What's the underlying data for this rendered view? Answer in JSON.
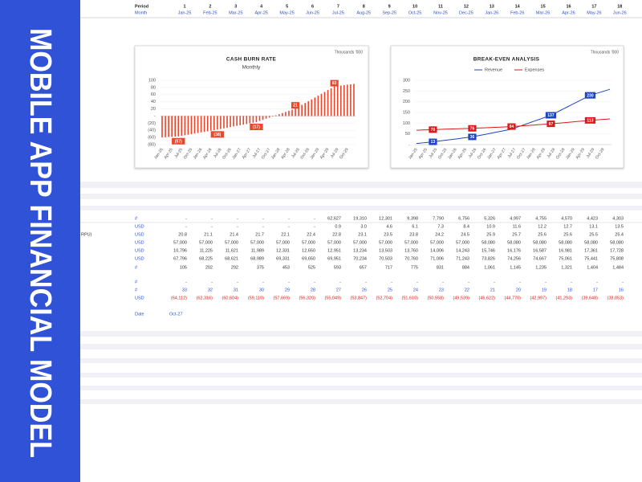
{
  "sidebar": {
    "title": "MOBILE APP FINANCIAL MODEL"
  },
  "header": {
    "period_label": "Period",
    "month_label": "Month",
    "periods": [
      1,
      2,
      3,
      4,
      5,
      6,
      7,
      8,
      9,
      10,
      11,
      12,
      13,
      14,
      15,
      16,
      17,
      18
    ],
    "months": [
      "Jan-25",
      "Feb-25",
      "Mar-25",
      "Apr-25",
      "May-25",
      "Jun-25",
      "Jul-25",
      "Aug-25",
      "Sep-25",
      "Oct-25",
      "Nov-25",
      "Dec-25",
      "Jan-26",
      "Feb-26",
      "Mar-26",
      "Apr-26",
      "May-26",
      "Jun-26"
    ]
  },
  "chart_data": [
    {
      "type": "bar",
      "title": "CASH BURN RATE",
      "subtitle": "Monthly",
      "note": "Thousands '000",
      "color": "#e8452c",
      "label_color": "#e8482c",
      "grid": true,
      "categories": [
        "Jan-25",
        null,
        null,
        "Apr-25",
        null,
        null,
        "Jul-25",
        null,
        null,
        "Oct-25",
        null,
        null,
        "Jan-26",
        null,
        null,
        "Apr-26",
        null,
        null,
        "Jul-26",
        null,
        null,
        "Oct-26",
        null,
        null,
        "Jan-27",
        null,
        null,
        "Apr-27",
        null,
        null,
        "Jul-27",
        null,
        null,
        "Oct-27",
        null,
        null,
        "Jan-28",
        null,
        null,
        "Apr-28",
        null,
        null,
        "Jul-28",
        null,
        null,
        "Oct-28",
        null,
        null,
        "Jan-29",
        null,
        null,
        "Apr-29",
        null,
        null,
        "Jul-29",
        null,
        null,
        "Oct-29",
        null,
        null
      ],
      "values": [
        -60,
        -59.4,
        -58.8,
        -58.2,
        -57.6,
        -57,
        -55.4,
        -53.8,
        -52.3,
        -50.7,
        -49.1,
        -47.5,
        -45.9,
        -44.3,
        -42.8,
        -41.2,
        -39.6,
        -38,
        -36.3,
        -34.5,
        -32.8,
        -31,
        -29.3,
        -27.5,
        -25.8,
        -24,
        -22.3,
        -20.5,
        -18.8,
        -17,
        -13.8,
        -10.7,
        -7.5,
        -4.3,
        -1.2,
        2,
        5.2,
        8.3,
        11.5,
        14.7,
        17.8,
        21,
        26.2,
        31.3,
        36.5,
        41.7,
        46.8,
        52,
        57.2,
        62.3,
        67.5,
        72.7,
        77.8,
        83,
        84.2,
        85.3,
        86.5,
        87.7,
        88.8,
        90
      ],
      "value_labels": [
        null,
        null,
        null,
        null,
        null,
        "(57)",
        null,
        null,
        null,
        null,
        null,
        null,
        null,
        null,
        null,
        null,
        null,
        "(38)",
        null,
        null,
        null,
        null,
        null,
        null,
        null,
        null,
        null,
        null,
        null,
        "(17)",
        null,
        null,
        null,
        null,
        null,
        null,
        null,
        null,
        null,
        null,
        null,
        "21",
        null,
        null,
        null,
        null,
        null,
        null,
        null,
        null,
        null,
        null,
        null,
        "83",
        null,
        null,
        null,
        null,
        null,
        null
      ],
      "ylim": [
        -80,
        100
      ],
      "yticks": [
        100,
        80,
        60,
        40,
        20,
        {
          "value": 0,
          "label": "-"
        },
        {
          "value": -20,
          "label": "(20)"
        },
        {
          "value": -40,
          "label": "(40)"
        },
        {
          "value": -60,
          "label": "(60)"
        },
        {
          "value": -80,
          "label": "(80)"
        }
      ]
    },
    {
      "type": "line",
      "title": "BREAK-EVEN ANALYSIS",
      "note": "Thousands '000",
      "grid": true,
      "legend": "top",
      "categories": [
        "Jan-25",
        null,
        null,
        "Apr-25",
        null,
        null,
        "Jul-25",
        null,
        null,
        "Oct-25",
        null,
        null,
        "Jan-26",
        null,
        null,
        "Apr-26",
        null,
        null,
        "Jul-26",
        null,
        null,
        "Oct-26",
        null,
        null,
        "Jan-27",
        null,
        null,
        "Apr-27",
        null,
        null,
        "Jul-27",
        null,
        null,
        "Oct-27",
        null,
        null,
        "Jan-28",
        null,
        null,
        "Apr-28",
        null,
        null,
        "Jul-28",
        null,
        null,
        "Oct-28",
        null,
        null,
        "Jan-29",
        null,
        null,
        "Apr-29",
        null,
        null,
        "Jul-29",
        null,
        null,
        "Oct-29",
        null,
        null
      ],
      "series": [
        {
          "name": "Revenue",
          "color": "#1f45c2",
          "values": [
            5,
            6.6,
            8.2,
            9.8,
            11.4,
            13,
            14.9,
            16.8,
            18.8,
            20.7,
            22.6,
            24.5,
            26.4,
            28.3,
            30.3,
            32.2,
            34.1,
            36,
            39,
            42,
            45,
            48,
            51,
            54,
            57,
            60,
            63,
            66,
            69,
            72,
            77.4,
            82.8,
            88.3,
            93.7,
            99.1,
            104.5,
            109.9,
            115.3,
            120.8,
            126.2,
            131.6,
            137,
            144.8,
            152.5,
            160.3,
            168,
            175.8,
            183.5,
            191.3,
            199,
            206.8,
            214.5,
            222.3,
            230,
            234.7,
            239.3,
            244,
            248.7,
            253.3,
            258
          ],
          "value_labels": [
            null,
            null,
            null,
            null,
            null,
            "13",
            null,
            null,
            null,
            null,
            null,
            null,
            null,
            null,
            null,
            null,
            null,
            "36",
            null,
            null,
            null,
            null,
            null,
            null,
            null,
            null,
            null,
            null,
            null,
            null,
            null,
            null,
            null,
            null,
            null,
            null,
            null,
            null,
            null,
            null,
            null,
            "137",
            null,
            null,
            null,
            null,
            null,
            null,
            null,
            null,
            null,
            null,
            null,
            "230",
            null,
            null,
            null,
            null,
            null,
            null
          ]
        },
        {
          "name": "Expenses",
          "color": "#d91a1a",
          "values": [
            67,
            67.6,
            68.2,
            68.8,
            69.4,
            70,
            70.5,
            71,
            71.5,
            72,
            72.5,
            73,
            73.5,
            74,
            74.5,
            75,
            75.5,
            76,
            76.7,
            77.3,
            78,
            78.7,
            79.3,
            80,
            80.7,
            81.3,
            82,
            82.7,
            83.3,
            84,
            85.1,
            86.2,
            87.3,
            88.3,
            89.4,
            90.5,
            91.6,
            92.7,
            93.8,
            94.8,
            95.9,
            97,
            98.3,
            99.7,
            101,
            102.3,
            103.7,
            105,
            106.3,
            107.7,
            109,
            110.3,
            111.7,
            113,
            114.2,
            115.3,
            116.5,
            117.7,
            118.8,
            120
          ],
          "value_labels": [
            null,
            null,
            null,
            null,
            null,
            "70",
            null,
            null,
            null,
            null,
            null,
            null,
            null,
            null,
            null,
            null,
            null,
            "76",
            null,
            null,
            null,
            null,
            null,
            null,
            null,
            null,
            null,
            null,
            null,
            "84",
            null,
            null,
            null,
            null,
            null,
            null,
            null,
            null,
            null,
            null,
            null,
            "97",
            null,
            null,
            null,
            null,
            null,
            null,
            null,
            null,
            null,
            null,
            null,
            "113",
            null,
            null,
            null,
            null,
            null,
            null
          ]
        }
      ],
      "ylim": [
        0,
        300
      ],
      "yticks": [
        {
          "value": 0,
          "label": "-"
        },
        50,
        100,
        150,
        200,
        250,
        300
      ]
    }
  ],
  "table": {
    "rows": [
      {
        "unit": "#",
        "cells": [
          "-",
          "-",
          "-",
          "-",
          "-",
          "-",
          "62,627",
          "19,310",
          "12,301",
          "9,398",
          "7,790",
          "6,756",
          "5,326",
          "4,997",
          "4,755",
          "4,570",
          "4,423",
          "4,303"
        ]
      },
      {
        "unit": "USD",
        "cells": [
          "-",
          "-",
          "-",
          "-",
          "-",
          "-",
          "0.9",
          "3.0",
          "4.6",
          "6.1",
          "7.3",
          "8.4",
          "10.9",
          "11.6",
          "12.2",
          "12.7",
          "13.1",
          "13.5"
        ]
      },
      {
        "label": "RPU)",
        "unit": "USD",
        "cells": [
          "20.8",
          "21.1",
          "21.4",
          "21.7",
          "22.1",
          "22.4",
          "22.8",
          "23.1",
          "23.5",
          "23.8",
          "24.2",
          "24.5",
          "25.9",
          "25.7",
          "25.6",
          "25.6",
          "25.5",
          "25.4"
        ]
      },
      {
        "unit": "USD",
        "cells": [
          "57,000",
          "57,000",
          "57,000",
          "57,000",
          "57,000",
          "57,000",
          "57,000",
          "57,000",
          "57,000",
          "57,000",
          "57,000",
          "57,000",
          "58,080",
          "58,080",
          "58,080",
          "58,080",
          "58,080",
          "58,080"
        ]
      },
      {
        "unit": "USD",
        "cells": [
          "10,796",
          "11,225",
          "11,621",
          "11,989",
          "12,331",
          "12,650",
          "12,951",
          "13,234",
          "13,503",
          "13,760",
          "14,006",
          "14,243",
          "15,746",
          "16,176",
          "16,587",
          "16,981",
          "17,361",
          "17,728"
        ]
      },
      {
        "unit": "USD",
        "cells": [
          "67,796",
          "68,225",
          "68,621",
          "68,989",
          "69,331",
          "69,650",
          "69,951",
          "70,234",
          "70,503",
          "70,760",
          "71,006",
          "71,243",
          "73,826",
          "74,256",
          "74,667",
          "75,061",
          "75,441",
          "75,808"
        ]
      },
      {
        "unit": "#",
        "cells": [
          "105",
          "202",
          "292",
          "375",
          "453",
          "525",
          "593",
          "657",
          "717",
          "775",
          "831",
          "884",
          "1,061",
          "1,145",
          "1,235",
          "1,321",
          "1,404",
          "1,484"
        ]
      },
      {
        "unit": "#",
        "cells": [
          "-",
          "-",
          "-",
          "-",
          "-",
          "-",
          "-",
          "-",
          "-",
          "-",
          "-",
          "-",
          "-",
          "-",
          "-",
          "-",
          "-",
          "-"
        ]
      },
      {
        "unit": "#",
        "color": "#2d4fc7",
        "cells": [
          "33",
          "32",
          "31",
          "30",
          "29",
          "28",
          "27",
          "26",
          "25",
          "24",
          "23",
          "22",
          "21",
          "20",
          "19",
          "18",
          "17",
          "16"
        ]
      },
      {
        "unit": "USD",
        "color": "#d91a1a",
        "cells": [
          "(64,112)",
          "(62,316)",
          "(60,604)",
          "(59,110)",
          "(57,669)",
          "(56,320)",
          "(55,049)",
          "(53,847)",
          "(52,704)",
          "(51,610)",
          "(50,558)",
          "(49,539)",
          "(46,622)",
          "(44,770)",
          "(42,997)",
          "(41,293)",
          "(39,648)",
          "(38,053)"
        ]
      },
      {
        "unit": "Date",
        "color": "#2d4fc7",
        "cells": [
          "Oct-27"
        ]
      }
    ]
  }
}
